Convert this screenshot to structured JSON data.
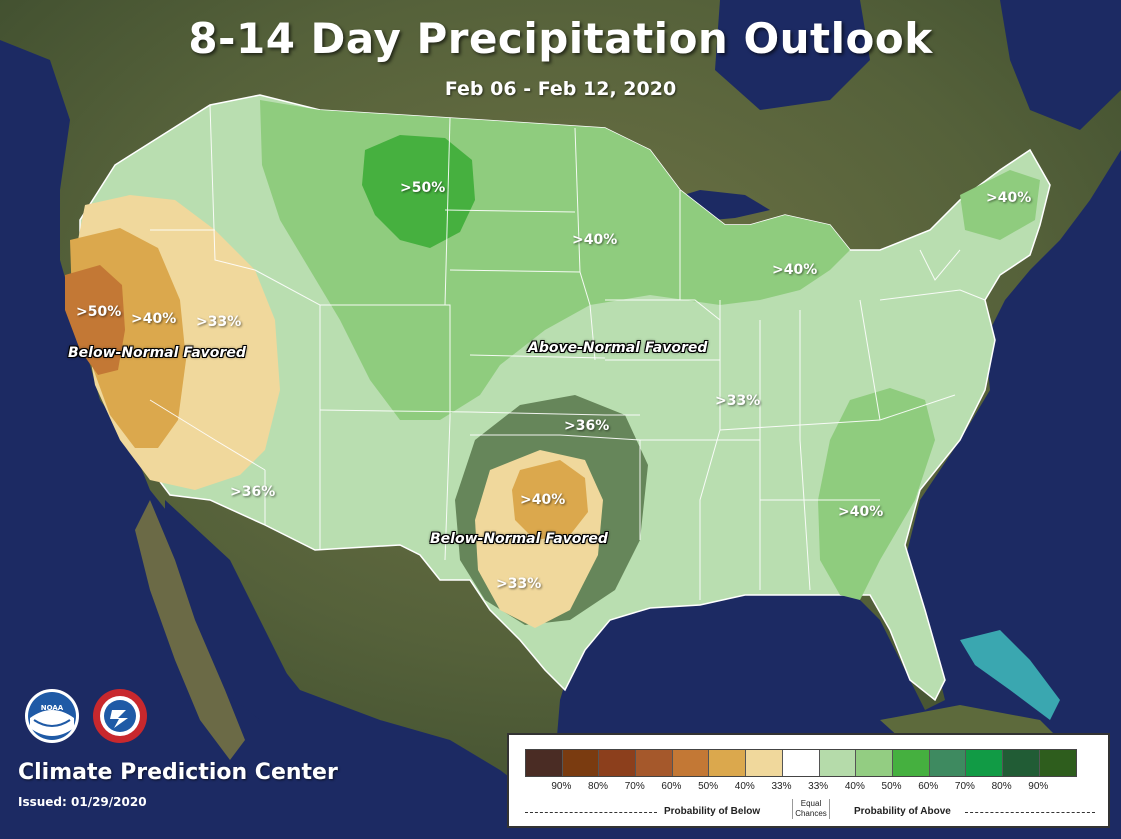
{
  "title": "8-14 Day Precipitation Outlook",
  "date_range": "Feb 06 - Feb 12, 2020",
  "org": "Climate Prediction Center",
  "issued": "Issued: 01/29/2020",
  "logos": {
    "noaa": "NOAA",
    "nws": "NATIONAL WEATHER SERVICE"
  },
  "region_labels": {
    "west_50": ">50%",
    "west_40": ">40%",
    "west_33": ">33%",
    "sw_36": ">36%",
    "montana_50": ">50%",
    "plains_40": ">40%",
    "michigan_40": ">40%",
    "ne_40": ">40%",
    "ohio_33": ">33%",
    "texas_36": ">36%",
    "texas_40": ">40%",
    "texas_33": ">33%",
    "se_40": ">40%"
  },
  "favored": {
    "west_below": "Below-Normal Favored",
    "central_above": "Above-Normal Favored",
    "south_below": "Below-Normal Favored"
  },
  "legend": {
    "colors": [
      "#4a2c24",
      "#7a3b10",
      "#8c3f1c",
      "#a5582b",
      "#c37835",
      "#dba84d",
      "#f0d89c",
      "#ffffff",
      "#b5dbaa",
      "#93cd82",
      "#45b03f",
      "#3e8a60",
      "#119b45",
      "#215c35",
      "#2e5d1d"
    ],
    "ticks": [
      "90%",
      "80%",
      "70%",
      "60%",
      "50%",
      "40%",
      "33%",
      "33%",
      "40%",
      "50%",
      "60%",
      "70%",
      "80%",
      "90%"
    ],
    "below_label": "Probability of Below",
    "above_label": "Probability of Above",
    "equal_label": "Equal Chances"
  }
}
